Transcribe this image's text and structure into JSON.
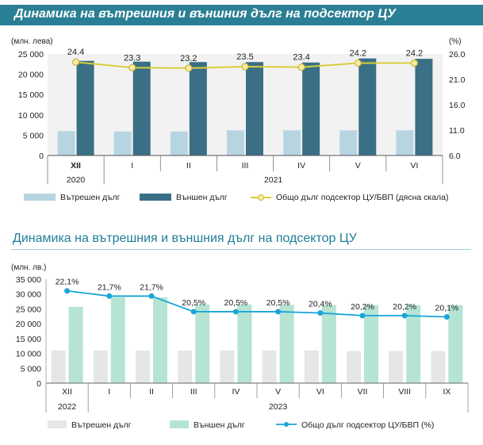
{
  "chart_data": [
    {
      "type": "bar",
      "title": "Динамика на вътрешния и външния дълг на подсектор ЦУ",
      "left_unit": "(млн. лева)",
      "right_unit": "(%)",
      "categories": [
        "XII",
        "I",
        "II",
        "III",
        "IV",
        "V",
        "VI"
      ],
      "years": [
        "2020",
        "2021"
      ],
      "y_ticks": [
        "25 000",
        "20 000",
        "15 000",
        "10 000",
        "5 000",
        "0"
      ],
      "ylim": [
        0,
        25000
      ],
      "y2_ticks": [
        "26.0",
        "21.0",
        "16.0",
        "11.0",
        "6.0"
      ],
      "y2lim": [
        6,
        26
      ],
      "series": [
        {
          "name": "Вътрешен дълг",
          "color": "#b7d5e1",
          "values": [
            6000,
            5900,
            5900,
            6200,
            6200,
            6200,
            6200
          ]
        },
        {
          "name": "Външен дълг",
          "color": "#3a6f86",
          "values": [
            23300,
            23100,
            23000,
            23000,
            22900,
            23900,
            23800
          ]
        },
        {
          "name": "Общо дълг подсектор ЦУ/БВП (дясна скала)",
          "color": "#d8cf3a",
          "axis": "right",
          "values": [
            24.4,
            23.3,
            23.2,
            23.5,
            23.4,
            24.2,
            24.2
          ],
          "labels": [
            "24.4",
            "23.3",
            "23.2",
            "23.5",
            "23.4",
            "24.2",
            "24.2"
          ]
        }
      ]
    },
    {
      "type": "bar",
      "title": "Динамика на вътрешния и външния дълг на подсектор ЦУ",
      "left_unit": "(млн. лв.)",
      "categories": [
        "XII",
        "I",
        "II",
        "III",
        "IV",
        "V",
        "VI",
        "VII",
        "VIII",
        "IX"
      ],
      "years": [
        "2022",
        "2023"
      ],
      "y_ticks": [
        "35 000",
        "30 000",
        "25 000",
        "20 000",
        "15 000",
        "10 000",
        "5 000",
        "0"
      ],
      "ylim": [
        0,
        35000
      ],
      "series": [
        {
          "name": "Вътрешен дълг",
          "color": "#e4e6e8",
          "values": [
            11000,
            11000,
            11000,
            11000,
            11000,
            11000,
            11000,
            10800,
            10800,
            10800
          ]
        },
        {
          "name": "Външен дълг",
          "color": "#b5e4d3",
          "values": [
            25700,
            28900,
            28900,
            26500,
            26500,
            26400,
            26300,
            26300,
            26300,
            26300
          ]
        },
        {
          "name": "Общо дълг подсектор ЦУ/БВП (%)",
          "color": "#1aa5d6",
          "axis": "right",
          "values": [
            22.1,
            21.7,
            21.7,
            20.5,
            20.5,
            20.5,
            20.4,
            20.2,
            20.2,
            20.1
          ],
          "labels": [
            "22,1%",
            "21,7%",
            "21,7%",
            "20,5%",
            "20,5%",
            "20,5%",
            "20,4%",
            "20,2%",
            "20,2%",
            "20,1%"
          ]
        }
      ]
    }
  ]
}
